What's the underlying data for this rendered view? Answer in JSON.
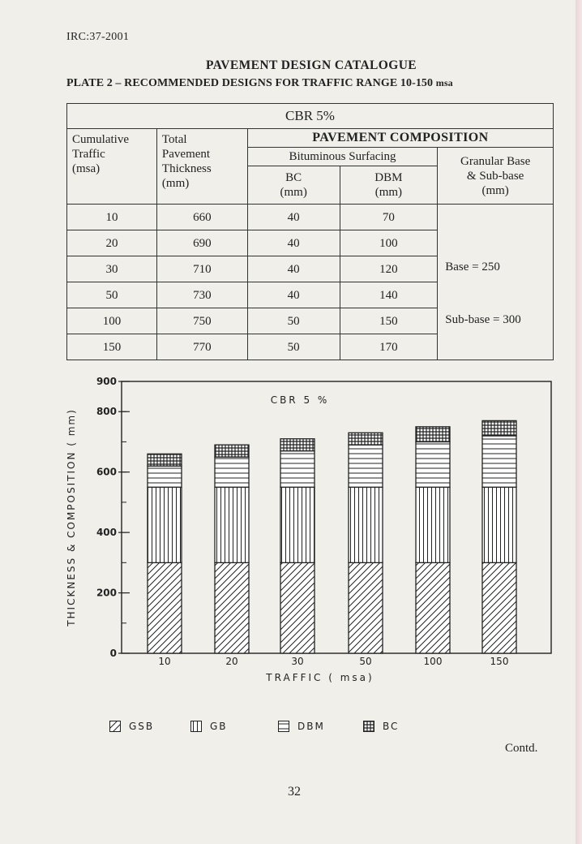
{
  "header": {
    "doc_code": "IRC:37-2001",
    "title": "PAVEMENT DESIGN CATALOGUE",
    "plate_title": "PLATE 2 – RECOMMENDED DESIGNS FOR TRAFFIC RANGE 10-150",
    "plate_unit": "msa"
  },
  "table": {
    "cbr": "CBR 5%",
    "col_traffic": [
      "Cumulative",
      "Traffic",
      "(msa)"
    ],
    "col_total": [
      "Total",
      "Pavement",
      "Thickness",
      "(mm)"
    ],
    "composition": "PAVEMENT COMPOSITION",
    "bituminous": "Bituminous Surfacing",
    "bc": [
      "BC",
      "(mm)"
    ],
    "dbm": [
      "DBM",
      "(mm)"
    ],
    "granular": [
      "Granular Base",
      "& Sub-base",
      "(mm)"
    ],
    "rows": [
      {
        "traffic": "10",
        "total": "660",
        "bc": "40",
        "dbm": "70"
      },
      {
        "traffic": "20",
        "total": "690",
        "bc": "40",
        "dbm": "100"
      },
      {
        "traffic": "30",
        "total": "710",
        "bc": "40",
        "dbm": "120"
      },
      {
        "traffic": "50",
        "total": "730",
        "bc": "40",
        "dbm": "140"
      },
      {
        "traffic": "100",
        "total": "750",
        "bc": "50",
        "dbm": "150"
      },
      {
        "traffic": "150",
        "total": "770",
        "bc": "50",
        "dbm": "170"
      }
    ],
    "base_note": "Base = 250",
    "subbase_note": "Sub-base = 300"
  },
  "chart_data": {
    "type": "bar",
    "stacked": true,
    "title": "CBR 5 %",
    "xlabel": "TRAFFIC ( msa)",
    "ylabel": "THICKNESS & COMPOSITION ( mm)",
    "ylim": [
      0,
      900
    ],
    "yticks": [
      "0",
      "200",
      "400",
      "600",
      "800",
      "900"
    ],
    "categories": [
      "10",
      "20",
      "30",
      "50",
      "100",
      "150"
    ],
    "series": [
      {
        "name": "GSB",
        "values": [
          300,
          300,
          300,
          300,
          300,
          300
        ]
      },
      {
        "name": "GB",
        "values": [
          250,
          250,
          250,
          250,
          250,
          250
        ]
      },
      {
        "name": "DBM",
        "values": [
          70,
          100,
          120,
          140,
          150,
          170
        ]
      },
      {
        "name": "BC",
        "values": [
          40,
          40,
          40,
          40,
          50,
          50
        ]
      }
    ]
  },
  "legend": [
    {
      "name": "GSB",
      "pattern": "diagonal"
    },
    {
      "name": "GB",
      "pattern": "vertical"
    },
    {
      "name": "DBM",
      "pattern": "horizontal"
    },
    {
      "name": "BC",
      "pattern": "grid"
    }
  ],
  "footer": {
    "contd": "Contd.",
    "page_number": "32"
  }
}
